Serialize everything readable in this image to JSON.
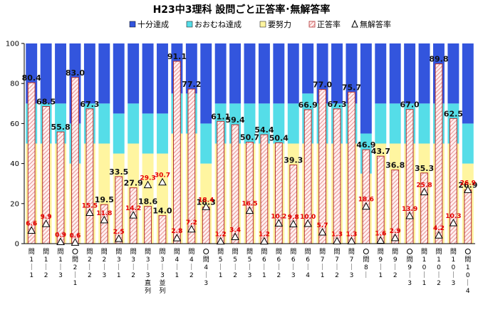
{
  "chart_data": {
    "type": "bar",
    "title": "H23中3理科 設問ごと正答率･無解答率",
    "ylim": [
      0,
      100
    ],
    "yticks": [
      0,
      20,
      40,
      60,
      80,
      100
    ],
    "grid": false,
    "legend_position": "top",
    "categories": [
      {
        "label": "問1-1",
        "circled": false,
        "extra": ""
      },
      {
        "label": "問1-2",
        "circled": false,
        "extra": ""
      },
      {
        "label": "問1-3",
        "circled": false,
        "extra": ""
      },
      {
        "label": "問2-1",
        "circled": true,
        "extra": ""
      },
      {
        "label": "問2-2",
        "circled": false,
        "extra": ""
      },
      {
        "label": "問2-3",
        "circled": false,
        "extra": ""
      },
      {
        "label": "問3-1",
        "circled": false,
        "extra": ""
      },
      {
        "label": "問3-2",
        "circled": false,
        "extra": ""
      },
      {
        "label": "問3-3",
        "circled": false,
        "extra": "直列"
      },
      {
        "label": "問3-3",
        "circled": false,
        "extra": "並列"
      },
      {
        "label": "問4-1",
        "circled": false,
        "extra": ""
      },
      {
        "label": "問4-2",
        "circled": false,
        "extra": ""
      },
      {
        "label": "問4-3",
        "circled": true,
        "extra": ""
      },
      {
        "label": "問5-1",
        "circled": false,
        "extra": ""
      },
      {
        "label": "問5-2",
        "circled": false,
        "extra": ""
      },
      {
        "label": "問5-3",
        "circled": false,
        "extra": ""
      },
      {
        "label": "問6-1",
        "circled": false,
        "extra": ""
      },
      {
        "label": "問6-2",
        "circled": false,
        "extra": ""
      },
      {
        "label": "問6-3",
        "circled": false,
        "extra": ""
      },
      {
        "label": "問6-4",
        "circled": false,
        "extra": ""
      },
      {
        "label": "問7-1",
        "circled": false,
        "extra": ""
      },
      {
        "label": "問7-2",
        "circled": false,
        "extra": ""
      },
      {
        "label": "問7-3",
        "circled": false,
        "extra": ""
      },
      {
        "label": "問8-",
        "circled": true,
        "extra": ""
      },
      {
        "label": "問9-1",
        "circled": false,
        "extra": ""
      },
      {
        "label": "問9-2",
        "circled": false,
        "extra": ""
      },
      {
        "label": "問9-3",
        "circled": true,
        "extra": ""
      },
      {
        "label": "問10-1",
        "circled": false,
        "extra": ""
      },
      {
        "label": "問10-2",
        "circled": false,
        "extra": ""
      },
      {
        "label": "問10-3",
        "circled": false,
        "extra": ""
      },
      {
        "label": "問10-4",
        "circled": true,
        "extra": ""
      }
    ],
    "series": [
      {
        "name": "十分達成",
        "color": "#3355dd",
        "kind": "stacked-bar",
        "values": [
          30,
          30,
          30,
          40,
          30,
          30,
          35,
          30,
          35,
          35,
          25,
          25,
          40,
          30,
          30,
          30,
          30,
          30,
          30,
          25,
          30,
          30,
          30,
          45,
          30,
          30,
          30,
          30,
          30,
          30,
          40
        ]
      },
      {
        "name": "おおむね達成",
        "color": "#55dde8",
        "kind": "stacked-bar",
        "values": [
          20,
          20,
          20,
          20,
          20,
          20,
          20,
          20,
          20,
          20,
          20,
          20,
          20,
          20,
          20,
          20,
          20,
          20,
          20,
          25,
          20,
          20,
          20,
          20,
          20,
          20,
          20,
          20,
          20,
          20,
          20
        ]
      },
      {
        "name": "要努力",
        "color": "#fff5a0",
        "kind": "stacked-bar",
        "values": [
          50,
          50,
          50,
          40,
          50,
          50,
          45,
          50,
          45,
          45,
          55,
          55,
          40,
          50,
          50,
          50,
          50,
          50,
          50,
          50,
          50,
          50,
          50,
          35,
          50,
          50,
          50,
          50,
          50,
          50,
          40
        ]
      },
      {
        "name": "正答率",
        "color": "#ffd0d0",
        "kind": "bar",
        "values": [
          80.4,
          68.5,
          55.8,
          83.0,
          67.3,
          19.5,
          33.5,
          27.9,
          18.6,
          14.0,
          91.1,
          77.2,
          18.3,
          61.1,
          59.4,
          50.7,
          54.4,
          50.4,
          39.3,
          66.9,
          77.0,
          67.3,
          75.7,
          46.9,
          43.7,
          36.8,
          67.0,
          35.3,
          89.8,
          62.5,
          26.9
        ],
        "labels": [
          "80.4",
          "68.5",
          "55.8",
          "83.0",
          "67.3",
          "19.5",
          "33.5",
          "27.9",
          "18.6",
          "14.0",
          "91.1",
          "77.2",
          "18.3",
          "61.1",
          "59.4",
          "50.7",
          "54.4",
          "50.4",
          "39.3",
          "66.9",
          "77.0",
          "67.3",
          "75.7",
          "46.9",
          "43.7",
          "36.8",
          "67.0",
          "35.3",
          "89.8",
          "62.5",
          "26.9"
        ]
      },
      {
        "name": "無解答率",
        "color": "#000000",
        "kind": "marker",
        "values": [
          6.6,
          9.9,
          0.9,
          0.6,
          15.5,
          11.8,
          2.5,
          14.2,
          29.3,
          30.7,
          2.8,
          7.2,
          18.4,
          1.2,
          3.4,
          16.5,
          1.2,
          10.2,
          9.8,
          10.0,
          5.7,
          1.3,
          1.3,
          18.6,
          1.6,
          2.9,
          13.9,
          25.8,
          4.2,
          10.3,
          26.9
        ],
        "labels": [
          "6.6",
          "9.9",
          "0.9",
          "0.6",
          "15.5",
          "11.8",
          "2.5",
          "14.2",
          "29.3",
          "30.7",
          "2.8",
          "7.2",
          "18.4",
          "1.2",
          "3.4",
          "16.5",
          "1.2",
          "10.2",
          "9.8",
          "10.0",
          "5.7",
          "1.3",
          "1.3",
          "18.6",
          "1.6",
          "2.9",
          "13.9",
          "25.8",
          "4.2",
          "10.3",
          "26.9"
        ]
      }
    ]
  }
}
